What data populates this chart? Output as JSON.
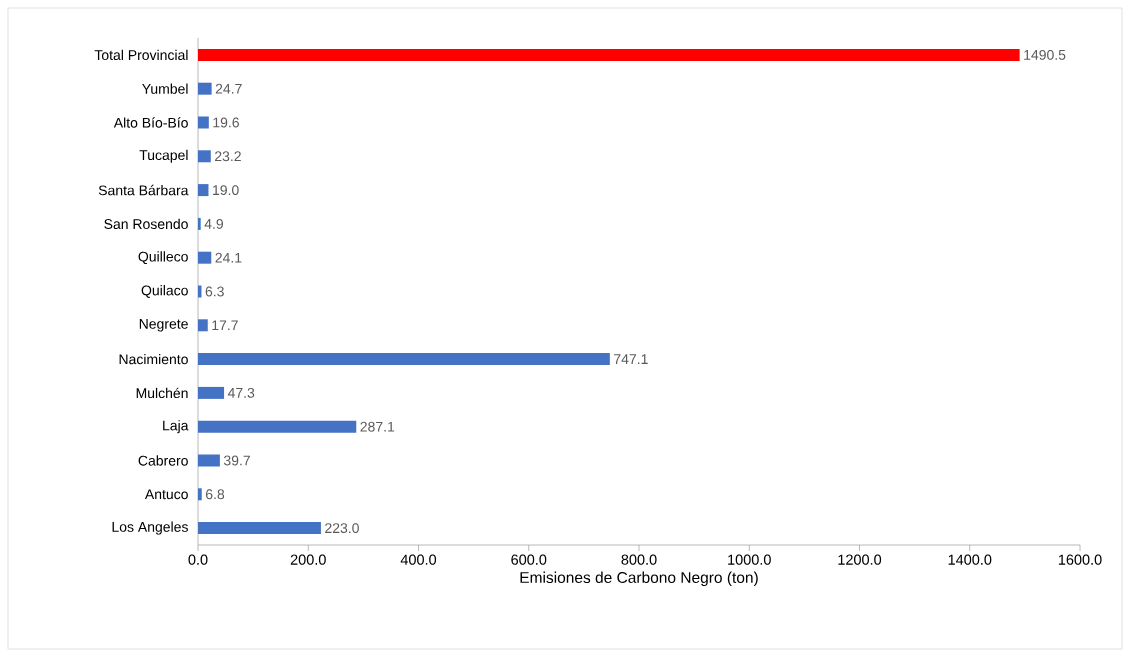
{
  "chart_data": {
    "type": "bar",
    "orientation": "horizontal",
    "xlabel": "Emisiones de Carbono Negro (ton)",
    "categories": [
      "Total Provincial",
      "Yumbel",
      "Alto Bío-Bío",
      "Tucapel",
      "Santa Bárbara",
      "San Rosendo",
      "Quilleco",
      "Quilaco",
      "Negrete",
      "Nacimiento",
      "Mulchén",
      "Laja",
      "Cabrero",
      "Antuco",
      "Los Angeles"
    ],
    "values": [
      1490.5,
      24.7,
      19.6,
      23.2,
      19.0,
      4.9,
      24.1,
      6.3,
      17.7,
      747.1,
      47.3,
      287.1,
      39.7,
      6.8,
      223.0
    ],
    "value_labels": [
      "1490.5",
      "24.7",
      "19.6",
      "23.2",
      "19.0",
      "4.9",
      "24.1",
      "6.3",
      "17.7",
      "747.1",
      "47.3",
      "287.1",
      "39.7",
      "6.8",
      "223.0"
    ],
    "colors": [
      "#ff0000",
      "#4472c4",
      "#4472c4",
      "#4472c4",
      "#4472c4",
      "#4472c4",
      "#4472c4",
      "#4472c4",
      "#4472c4",
      "#4472c4",
      "#4472c4",
      "#4472c4",
      "#4472c4",
      "#4472c4",
      "#4472c4"
    ],
    "xlim": [
      0,
      1600
    ],
    "xticks": [
      {
        "value": 0,
        "label": "0.0"
      },
      {
        "value": 200,
        "label": "200.0"
      },
      {
        "value": 400,
        "label": "400.0"
      },
      {
        "value": 600,
        "label": "600.0"
      },
      {
        "value": 800,
        "label": "800.0"
      },
      {
        "value": 1000,
        "label": "1000.0"
      },
      {
        "value": 1200,
        "label": "1200.0"
      },
      {
        "value": 1400,
        "label": "1400.0"
      },
      {
        "value": 1600,
        "label": "1600.0"
      }
    ],
    "grid": false
  }
}
